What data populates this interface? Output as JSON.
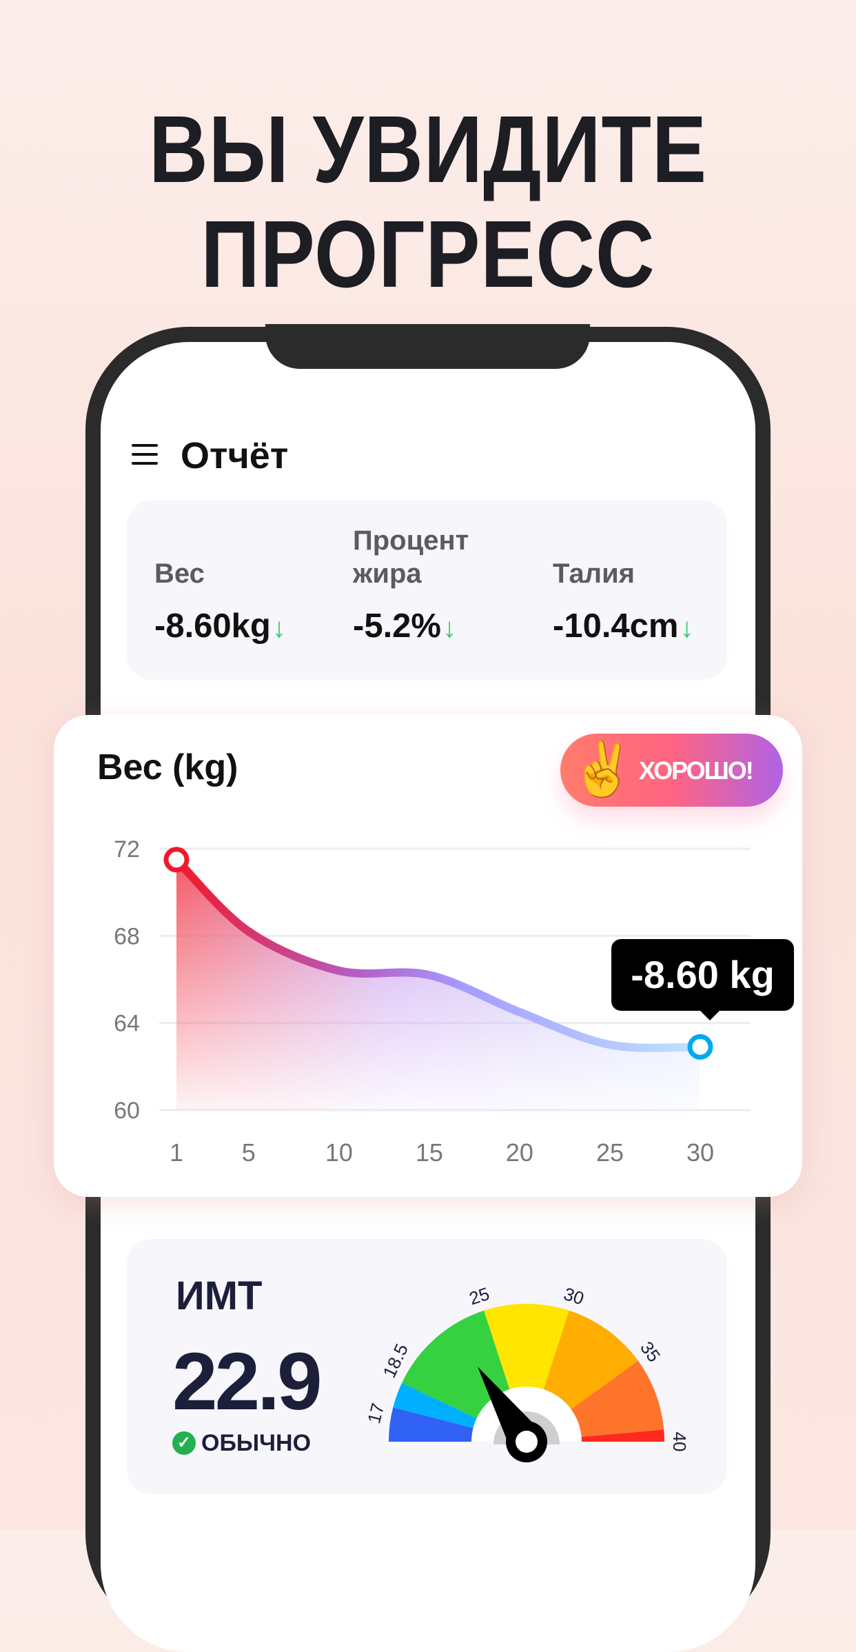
{
  "headline": {
    "line1": "ВЫ УВИДИТЕ",
    "line2": "ПРОГРЕСС"
  },
  "header": {
    "title": "Отчёт",
    "menu_icon": "hamburger-icon"
  },
  "stats": [
    {
      "label": "Вес",
      "value": "-8.60kg",
      "trend": "down"
    },
    {
      "label": "Процент\nжира",
      "value": "-5.2%",
      "trend": "down"
    },
    {
      "label": "Талия",
      "value": "-10.4cm",
      "trend": "down"
    }
  ],
  "trend_arrow": "↓",
  "weight_card": {
    "title": "Вес (kg)",
    "badge": "ХОРОШО!",
    "badge_emoji": "✌️",
    "tooltip": "-8.60 kg"
  },
  "chart_data": {
    "type": "area",
    "title": "Вес (kg)",
    "x_ticks": [
      "1",
      "5",
      "10",
      "15",
      "20",
      "25",
      "30"
    ],
    "y_ticks": [
      "60",
      "64",
      "68",
      "72"
    ],
    "ylim": [
      60,
      72
    ],
    "xlim": [
      1,
      30
    ],
    "grid": true,
    "series": [
      {
        "x": [
          1,
          5,
          10,
          15,
          20,
          25,
          30
        ],
        "y": [
          71.5,
          68.2,
          66.4,
          66.2,
          64.5,
          63.0,
          62.9
        ]
      }
    ],
    "colors": {
      "start": "#f0192a",
      "mid": "#a98cf5",
      "end": "#00aaf0"
    }
  },
  "bmi": {
    "title": "ИМТ",
    "value": "22.9",
    "status": "ОБЫЧНО",
    "needle_value": 22.9,
    "range": [
      15,
      40
    ],
    "bands": [
      {
        "from": 15,
        "to": 17,
        "color": "#2f62f5"
      },
      {
        "from": 17,
        "to": 18.5,
        "color": "#00b0ff"
      },
      {
        "from": 18.5,
        "to": 25,
        "color": "#35d141"
      },
      {
        "from": 25,
        "to": 30,
        "color": "#ffe500"
      },
      {
        "from": 30,
        "to": 35,
        "color": "#ffad00"
      },
      {
        "from": 35,
        "to": 39.3,
        "color": "#ff742b"
      },
      {
        "from": 39.3,
        "to": 40,
        "color": "#ff2a1f"
      }
    ],
    "tick_labels": [
      "17",
      "18.5",
      "25",
      "30",
      "35",
      "40"
    ]
  }
}
